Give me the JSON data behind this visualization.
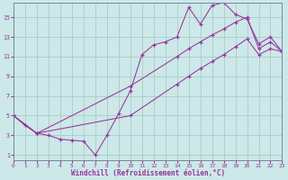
{
  "bg_color": "#cce8e8",
  "grid_color": "#aacccc",
  "line_color": "#993399",
  "xlabel": "Windchill (Refroidissement éolien,°C)",
  "xlim": [
    0,
    23
  ],
  "ylim": [
    0.5,
    16.5
  ],
  "xticks": [
    0,
    1,
    2,
    3,
    4,
    5,
    6,
    7,
    8,
    9,
    10,
    11,
    12,
    13,
    14,
    15,
    16,
    17,
    18,
    19,
    20,
    21,
    22,
    23
  ],
  "yticks": [
    1,
    3,
    5,
    7,
    9,
    11,
    13,
    15
  ],
  "line1_x": [
    0,
    1,
    2,
    3,
    4,
    5,
    6,
    7,
    8,
    9,
    10,
    11,
    12,
    13,
    14,
    15,
    16,
    17,
    18,
    19,
    20,
    21,
    22,
    23
  ],
  "line1_y": [
    5.0,
    4.0,
    3.2,
    3.0,
    2.6,
    2.5,
    2.4,
    1.0,
    3.0,
    5.2,
    7.5,
    11.2,
    12.2,
    12.5,
    13.0,
    16.0,
    14.3,
    16.2,
    16.5,
    15.3,
    14.8,
    12.3,
    13.0,
    11.5
  ],
  "line2_x": [
    0,
    2,
    10,
    14,
    15,
    16,
    17,
    18,
    19,
    20,
    21,
    22,
    23
  ],
  "line2_y": [
    5.0,
    3.2,
    8.0,
    11.0,
    11.8,
    12.5,
    13.2,
    13.8,
    14.5,
    15.0,
    11.8,
    12.5,
    11.5
  ],
  "line3_x": [
    0,
    2,
    10,
    14,
    15,
    16,
    17,
    18,
    19,
    20,
    21,
    22,
    23
  ],
  "line3_y": [
    5.0,
    3.2,
    5.0,
    8.2,
    9.0,
    9.8,
    10.5,
    11.2,
    12.0,
    12.8,
    11.2,
    11.8,
    11.5
  ]
}
